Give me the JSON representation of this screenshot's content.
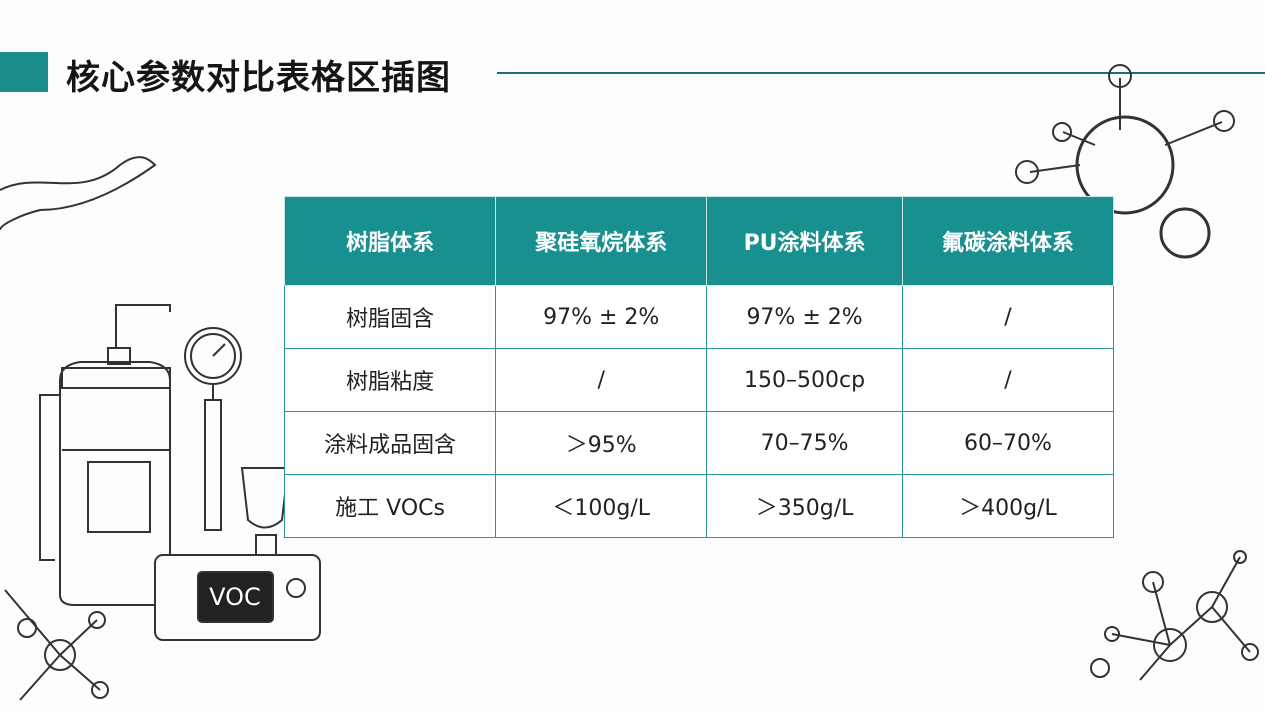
{
  "header": {
    "title": "核心参数对比表格区插图"
  },
  "table": {
    "headers": [
      "树脂体系",
      "聚硅氧烷体系",
      "PU涂料体系",
      "氟碳涂料体系"
    ],
    "rows": [
      [
        "树脂固含",
        "97% ± 2%",
        "97% ± 2%",
        "/"
      ],
      [
        "树脂粘度",
        "/",
        "150–500cp",
        "/"
      ],
      [
        "涂料成品固含",
        "＞95%",
        "70–75%",
        "60–70%"
      ],
      [
        "施工 VOCs",
        "＜100g/L",
        "＞350g/L",
        "＞400g/L"
      ]
    ]
  },
  "illustration": {
    "label": "VOC"
  }
}
